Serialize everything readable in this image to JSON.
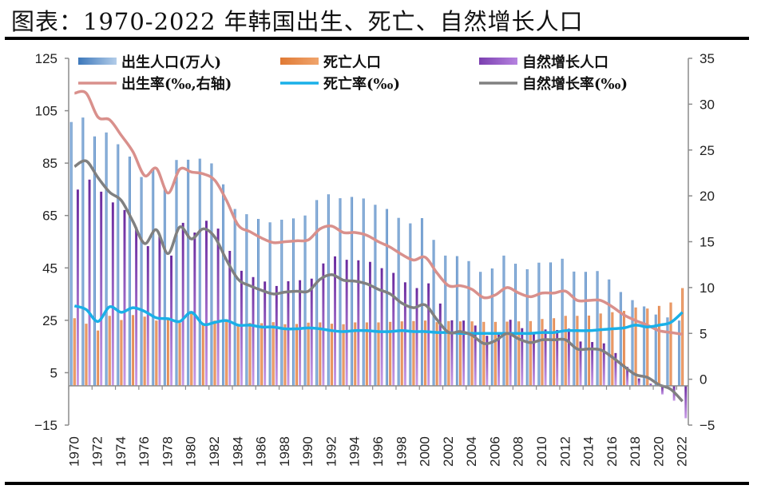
{
  "title": "图表：1970-2022 年韩国出生、死亡、自然增长人口",
  "chart_data": {
    "type": "bar",
    "title": "图表：1970-2022 年韩国出生、死亡、自然增长人口",
    "xlabel": "",
    "ylabel_left": "",
    "ylabel_right": "",
    "x": [
      1970,
      1971,
      1972,
      1973,
      1974,
      1975,
      1976,
      1977,
      1978,
      1979,
      1980,
      1981,
      1982,
      1983,
      1984,
      1985,
      1986,
      1987,
      1988,
      1989,
      1990,
      1991,
      1992,
      1993,
      1994,
      1995,
      1996,
      1997,
      1998,
      1999,
      2000,
      2001,
      2002,
      2003,
      2004,
      2005,
      2006,
      2007,
      2008,
      2009,
      2010,
      2011,
      2012,
      2013,
      2014,
      2015,
      2016,
      2017,
      2018,
      2019,
      2020,
      2021,
      2022
    ],
    "x_tick_labels": [
      "1970",
      "1972",
      "1974",
      "1976",
      "1978",
      "1980",
      "1982",
      "1984",
      "1986",
      "1988",
      "1990",
      "1992",
      "1994",
      "1996",
      "1998",
      "2000",
      "2002",
      "2004",
      "2006",
      "2008",
      "2010",
      "2012",
      "2014",
      "2016",
      "2018",
      "2020",
      "2022"
    ],
    "ylim_left": [
      -15,
      125
    ],
    "yticks_left": [
      -15,
      5,
      25,
      45,
      65,
      85,
      105,
      125
    ],
    "ylim_right": [
      -5,
      35
    ],
    "yticks_right": [
      -5,
      0,
      5,
      10,
      15,
      20,
      25,
      30,
      35
    ],
    "grid": false,
    "legend_position": "top",
    "series": [
      {
        "name": "出生人口(万人)",
        "type": "bar",
        "axis": "left",
        "color": "#5b8fc7",
        "values": [
          100.7,
          102.4,
          95.2,
          96.7,
          92.2,
          87.5,
          79.7,
          82.5,
          75.1,
          86.2,
          86.3,
          86.7,
          84.9,
          76.9,
          67.5,
          65.5,
          63.7,
          62.4,
          63.4,
          63.9,
          65.0,
          70.9,
          73.1,
          71.6,
          72.1,
          71.5,
          69.1,
          67.5,
          64.1,
          62.0,
          64.0,
          55.7,
          49.7,
          49.5,
          47.6,
          43.5,
          44.8,
          49.7,
          46.6,
          44.5,
          47.0,
          47.1,
          48.5,
          43.6,
          43.5,
          43.8,
          40.6,
          35.8,
          32.7,
          30.3,
          27.2,
          26.1,
          24.9
        ]
      },
      {
        "name": "死亡人口",
        "type": "bar",
        "axis": "left",
        "color": "#e8803a",
        "values": [
          25.8,
          23.7,
          21.1,
          26.7,
          25.1,
          27.0,
          26.4,
          24.9,
          25.4,
          24.0,
          27.8,
          23.7,
          24.9,
          25.4,
          23.6,
          24.0,
          23.9,
          24.3,
          23.5,
          23.6,
          24.1,
          24.2,
          23.7,
          23.5,
          24.2,
          24.2,
          24.2,
          24.4,
          24.6,
          24.7,
          24.9,
          24.3,
          24.7,
          24.6,
          24.6,
          24.4,
          24.4,
          24.5,
          24.6,
          24.7,
          25.5,
          25.8,
          26.7,
          26.7,
          26.8,
          27.6,
          28.1,
          28.6,
          29.9,
          29.5,
          30.5,
          31.8,
          37.3
        ]
      },
      {
        "name": "自然增长人口",
        "type": "bar",
        "axis": "left",
        "color": "#7b3fb0",
        "values": [
          74.9,
          78.7,
          74.1,
          70.0,
          67.1,
          60.5,
          53.3,
          57.6,
          49.7,
          62.2,
          58.5,
          63.0,
          60.0,
          51.5,
          43.9,
          41.5,
          39.8,
          38.1,
          39.9,
          40.3,
          40.9,
          46.7,
          49.4,
          48.1,
          47.9,
          47.3,
          44.9,
          43.1,
          39.5,
          37.3,
          39.1,
          31.4,
          25.0,
          24.9,
          23.0,
          19.1,
          20.4,
          25.2,
          22.0,
          19.8,
          21.5,
          21.3,
          21.8,
          16.9,
          16.7,
          16.2,
          12.5,
          7.2,
          2.8,
          0.8,
          -3.3,
          -5.7,
          -12.4
        ]
      },
      {
        "name": "出生率(‰,右轴)",
        "type": "line",
        "axis": "right",
        "color": "#d9908c",
        "values": [
          31.2,
          31.2,
          28.6,
          28.3,
          26.6,
          24.8,
          22.2,
          23.0,
          20.3,
          22.9,
          22.6,
          22.4,
          21.7,
          19.5,
          16.8,
          16.1,
          15.4,
          14.9,
          15.0,
          15.1,
          15.2,
          16.4,
          16.7,
          16.0,
          16.0,
          15.7,
          15.0,
          14.4,
          13.6,
          13.0,
          13.3,
          11.6,
          10.2,
          10.2,
          9.8,
          8.9,
          9.2,
          10.0,
          9.4,
          9.0,
          9.4,
          9.4,
          9.6,
          8.6,
          8.6,
          8.6,
          7.9,
          7.0,
          6.4,
          5.9,
          5.3,
          5.1,
          4.9
        ]
      },
      {
        "name": "死亡率(‰)",
        "type": "line",
        "axis": "right",
        "color": "#1ab0e8",
        "values": [
          8.0,
          7.6,
          6.3,
          7.9,
          7.3,
          7.8,
          7.4,
          6.7,
          6.6,
          6.3,
          7.3,
          6.0,
          6.2,
          6.4,
          5.9,
          5.9,
          5.7,
          5.7,
          5.5,
          5.5,
          5.6,
          5.5,
          5.3,
          5.2,
          5.3,
          5.3,
          5.2,
          5.2,
          5.3,
          5.2,
          5.2,
          5.1,
          5.1,
          5.0,
          5.0,
          5.0,
          5.0,
          5.0,
          5.0,
          5.0,
          5.1,
          5.1,
          5.3,
          5.3,
          5.3,
          5.4,
          5.5,
          5.6,
          5.9,
          5.7,
          5.9,
          6.2,
          7.3
        ]
      },
      {
        "name": "自然增长率(‰)",
        "type": "line",
        "axis": "right",
        "color": "#808080",
        "values": [
          23.2,
          23.8,
          22.0,
          20.4,
          19.5,
          17.2,
          14.8,
          16.3,
          13.7,
          16.6,
          15.3,
          16.4,
          15.5,
          13.0,
          10.9,
          10.2,
          9.7,
          9.3,
          9.5,
          9.6,
          9.6,
          10.9,
          11.4,
          10.8,
          10.7,
          10.4,
          9.8,
          9.3,
          8.3,
          7.8,
          8.1,
          6.5,
          5.1,
          5.2,
          4.8,
          3.9,
          4.2,
          5.0,
          4.4,
          4.0,
          4.3,
          4.3,
          4.3,
          3.3,
          3.3,
          3.2,
          2.4,
          1.4,
          0.5,
          0.2,
          -0.6,
          -1.1,
          -2.4
        ]
      }
    ]
  }
}
